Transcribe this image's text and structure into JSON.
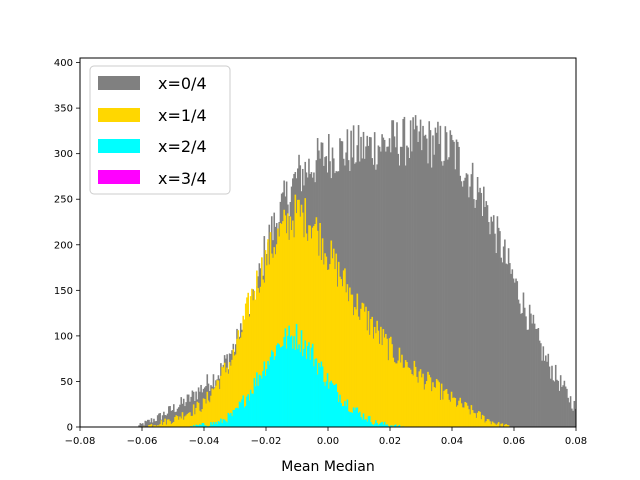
{
  "chart_data": {
    "type": "histogram",
    "xlabel": "Mean Median",
    "ylabel": "",
    "xlim": [
      -0.08,
      0.08
    ],
    "ylim": [
      0,
      405
    ],
    "x_ticks": [
      "−0.08",
      "−0.06",
      "−0.04",
      "−0.02",
      "0.00",
      "0.02",
      "0.04",
      "0.06",
      "0.08"
    ],
    "x_tick_values": [
      -0.08,
      -0.06,
      -0.04,
      -0.02,
      0.0,
      0.02,
      0.04,
      0.06,
      0.08
    ],
    "y_ticks": [
      "0",
      "50",
      "100",
      "150",
      "200",
      "250",
      "300",
      "350",
      "400"
    ],
    "y_tick_values": [
      0,
      50,
      100,
      150,
      200,
      250,
      300,
      350,
      400
    ],
    "grid": false,
    "legend_position": "top-left",
    "bin_width": 0.0004,
    "series": [
      {
        "name": "x=0/4",
        "color": "#808080",
        "profile": [
          [
            -0.062,
            0
          ],
          [
            -0.055,
            10
          ],
          [
            -0.045,
            30
          ],
          [
            -0.035,
            60
          ],
          [
            -0.025,
            120
          ],
          [
            -0.02,
            200
          ],
          [
            -0.015,
            240
          ],
          [
            -0.01,
            275
          ],
          [
            0.0,
            300
          ],
          [
            0.01,
            305
          ],
          [
            0.02,
            312
          ],
          [
            0.03,
            315
          ],
          [
            0.04,
            305
          ],
          [
            0.05,
            250
          ],
          [
            0.06,
            160
          ],
          [
            0.07,
            75
          ],
          [
            0.08,
            20
          ]
        ]
      },
      {
        "name": "x=1/4",
        "color": "#FFD700",
        "profile": [
          [
            -0.06,
            0
          ],
          [
            -0.05,
            8
          ],
          [
            -0.04,
            25
          ],
          [
            -0.03,
            80
          ],
          [
            -0.025,
            140
          ],
          [
            -0.02,
            185
          ],
          [
            -0.015,
            215
          ],
          [
            -0.01,
            235
          ],
          [
            -0.005,
            225
          ],
          [
            0.0,
            190
          ],
          [
            0.01,
            130
          ],
          [
            0.02,
            85
          ],
          [
            0.03,
            55
          ],
          [
            0.04,
            30
          ],
          [
            0.05,
            10
          ],
          [
            0.055,
            3
          ],
          [
            0.06,
            0
          ]
        ]
      },
      {
        "name": "x=2/4",
        "color": "#00FFFF",
        "profile": [
          [
            -0.045,
            0
          ],
          [
            -0.035,
            5
          ],
          [
            -0.03,
            15
          ],
          [
            -0.025,
            40
          ],
          [
            -0.02,
            70
          ],
          [
            -0.015,
            95
          ],
          [
            -0.01,
            100
          ],
          [
            -0.005,
            80
          ],
          [
            0.0,
            50
          ],
          [
            0.005,
            30
          ],
          [
            0.01,
            15
          ],
          [
            0.015,
            5
          ],
          [
            0.02,
            2
          ],
          [
            0.025,
            0
          ]
        ]
      },
      {
        "name": "x=3/4",
        "color": "#FF00FF",
        "profile": []
      }
    ]
  }
}
